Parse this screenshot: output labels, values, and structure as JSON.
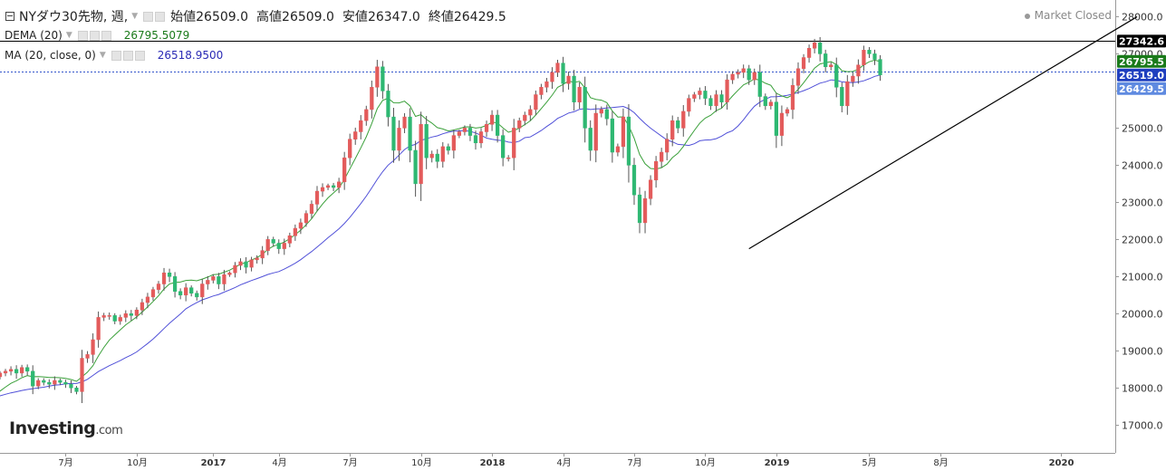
{
  "header": {
    "symbol": "NYダウ30先物, 週,",
    "ohlc": [
      {
        "label": "始値",
        "value": "26509.0"
      },
      {
        "label": "高値",
        "value": "26509.0"
      },
      {
        "label": "安値",
        "value": "26347.0"
      },
      {
        "label": "終値",
        "value": "26429.5"
      }
    ],
    "market_status": "Market Closed"
  },
  "indicators": [
    {
      "name": "DEMA (20)",
      "value": "26795.5079",
      "color": "#1a7a1a"
    },
    {
      "name": "MA (20, close, 0)",
      "value": "26518.9500",
      "color": "#2a2ab5"
    }
  ],
  "logo": {
    "brand": "Investing",
    "suffix": ".com"
  },
  "price_tags": [
    {
      "value": "27342.6",
      "bg": "#000000",
      "fg": "#ffffff"
    },
    {
      "value": "26795.5",
      "bg": "#1a7a1a",
      "fg": "#ffffff"
    },
    {
      "value": "26519.0",
      "bg": "#1f3fbf",
      "fg": "#ffffff"
    },
    {
      "value": "26429.5",
      "bg": "#5f8ae0",
      "fg": "#ffffff"
    }
  ],
  "colors": {
    "up": "#e35b5b",
    "down": "#2eb872",
    "dema": "#3aa03a",
    "ma": "#5050d8",
    "trendline": "#000000"
  },
  "chart_data": {
    "type": "candlestick",
    "title": "NYダウ30先物, 週,",
    "y_axis": {
      "ticks": [
        17000,
        18000,
        19000,
        20000,
        21000,
        22000,
        23000,
        24000,
        25000,
        26000,
        27000,
        28000
      ],
      "labels": [
        "17000.0",
        "18000.0",
        "19000.0",
        "20000.0",
        "21000.0",
        "22000.0",
        "23000.0",
        "24000.0",
        "25000.0",
        "26000.0",
        "27000.0",
        "28000.0"
      ],
      "ylim": [
        16250,
        28450
      ]
    },
    "x_axis": {
      "labels": [
        "7月",
        "10月",
        "2017",
        "4月",
        "7月",
        "10月",
        "2018",
        "4月",
        "7月",
        "10月",
        "2019",
        "5月",
        "8月",
        "2020"
      ],
      "positions": [
        26,
        39,
        53,
        65,
        78,
        91,
        104,
        117,
        130,
        143,
        156,
        173,
        186,
        208
      ],
      "xlim": [
        14,
        218
      ]
    },
    "close_series": [
      17600,
      17750,
      17800,
      17550,
      17700,
      17900,
      17600,
      17800,
      17900,
      17950,
      17500,
      17250,
      17800,
      18300,
      18400,
      18450,
      18500,
      18400,
      18550,
      18450,
      18050,
      18200,
      18150,
      18100,
      18200,
      18150,
      18100,
      18000,
      17900,
      18800,
      18900,
      19300,
      19900,
      19950,
      19950,
      19800,
      19900,
      20000,
      19950,
      20100,
      20300,
      20450,
      20650,
      20800,
      21100,
      21000,
      20600,
      20500,
      20700,
      20550,
      20450,
      20800,
      20900,
      21000,
      20800,
      21050,
      21100,
      21300,
      21400,
      21250,
      21450,
      21500,
      21700,
      22000,
      21900,
      21750,
      21900,
      22100,
      22300,
      22450,
      22700,
      22950,
      23300,
      23400,
      23450,
      23400,
      23550,
      24200,
      24700,
      24900,
      25200,
      25500,
      26100,
      26650,
      26000,
      25300,
      24400,
      25000,
      25300,
      24400,
      23500,
      25100,
      24200,
      24300,
      24100,
      24500,
      24400,
      24800,
      24900,
      25000,
      24800,
      24600,
      24900,
      25100,
      25350,
      24800,
      24200,
      24200,
      25000,
      25200,
      25350,
      25500,
      25900,
      26100,
      26250,
      26500,
      26750,
      26200,
      26400,
      25700,
      26100,
      25000,
      24400,
      25400,
      25500,
      25250,
      24350,
      24500,
      25300,
      24000,
      23200,
      22450,
      23100,
      23600,
      24100,
      24350,
      24700,
      25200,
      25000,
      25450,
      25800,
      25900,
      26000,
      25800,
      25600,
      25900,
      25700,
      26300,
      26450,
      26500,
      26600,
      26300,
      26500,
      25850,
      25600,
      25700,
      24800,
      25400,
      25500,
      26150,
      26600,
      26900,
      27150,
      27300,
      27000,
      26650,
      26700,
      26100,
      25600,
      26250,
      26400,
      26700,
      27100,
      27000,
      26850,
      26429.5
    ],
    "trendline": {
      "from": {
        "x": 151,
        "y": 21750
      },
      "to": {
        "x": 222,
        "y": 28000
      }
    },
    "horizontal_levels": [
      27342.6,
      26519.0
    ],
    "series": [
      {
        "name": "DEMA (20)",
        "last": 26795.5079
      },
      {
        "name": "MA (20, close, 0)",
        "last": 26518.95
      }
    ]
  }
}
